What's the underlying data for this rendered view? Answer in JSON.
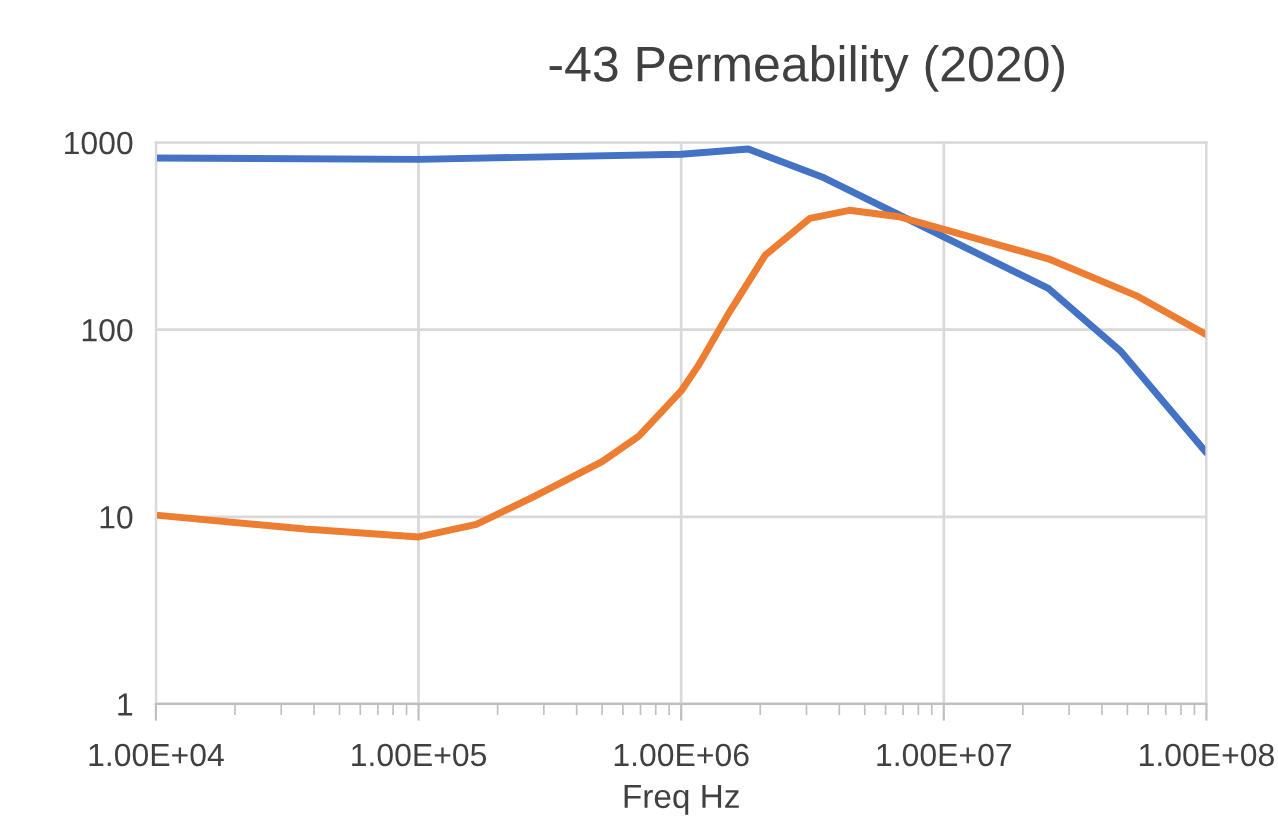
{
  "chart_data": {
    "type": "line",
    "title": "-43 Permeability (2020)",
    "xlabel": "Freq Hz",
    "log": "xy",
    "grid": true,
    "legend": false,
    "marker": "none",
    "line_style": "solid",
    "xlim": [
      10000,
      100000000
    ],
    "ylim": [
      1,
      1000
    ],
    "xticks": [
      {
        "value": 10000,
        "label": "1.00E+04"
      },
      {
        "value": 100000,
        "label": "1.00E+05"
      },
      {
        "value": 1000000,
        "label": "1.00E+06"
      },
      {
        "value": 10000000,
        "label": "1.00E+07"
      },
      {
        "value": 100000000,
        "label": "1.00E+08"
      }
    ],
    "yticks": [
      1,
      10,
      100,
      1000
    ],
    "series": [
      {
        "color": "#4472c4",
        "x": [
          10000,
          100000,
          1000000,
          1800000,
          3500000,
          10000000,
          25000000,
          47000000,
          100000000
        ],
        "values": [
          826,
          812,
          865,
          922,
          647,
          313,
          166,
          77,
          22
        ]
      },
      {
        "color": "#ed7d31",
        "x": [
          10000,
          37000,
          100000,
          166000,
          275000,
          500000,
          690000,
          1000000,
          1160000,
          1510000,
          2090000,
          3090000,
          4370000,
          6760000,
          10000000,
          25000000,
          54000000,
          100000000
        ],
        "values": [
          10.2,
          8.6,
          7.8,
          9.1,
          12.8,
          19.7,
          27,
          47,
          64,
          121,
          250,
          393,
          434,
          401,
          343,
          239,
          152,
          94
        ]
      }
    ]
  }
}
